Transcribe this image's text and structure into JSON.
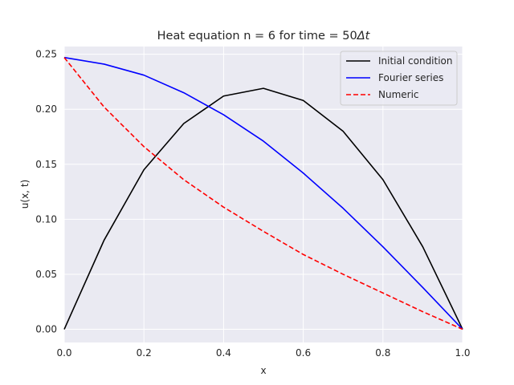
{
  "chart_data": {
    "type": "line",
    "title_main": "Heat equation n = 6 for time = 50",
    "title_symbol": "Δt",
    "xlabel": "x",
    "ylabel": "u(x, t)",
    "xlim": [
      0.0,
      1.0
    ],
    "ylim": [
      -0.012,
      0.257
    ],
    "xticks": [
      0.0,
      0.2,
      0.4,
      0.6,
      0.8,
      1.0
    ],
    "xtick_labels": [
      "0.0",
      "0.2",
      "0.4",
      "0.6",
      "0.8",
      "1.0"
    ],
    "yticks": [
      0.0,
      0.05,
      0.1,
      0.15,
      0.2,
      0.25
    ],
    "ytick_labels": [
      "0.00",
      "0.05",
      "0.10",
      "0.15",
      "0.20",
      "0.25"
    ],
    "grid": true,
    "legend_position": "top-right",
    "series": [
      {
        "name": "Initial condition",
        "color": "#000000",
        "style": "solid",
        "x": [
          0.0,
          0.1,
          0.2,
          0.3,
          0.4,
          0.5,
          0.6,
          0.7,
          0.8,
          0.9,
          1.0
        ],
        "y": [
          0.0,
          0.081,
          0.145,
          0.187,
          0.212,
          0.219,
          0.208,
          0.18,
          0.136,
          0.075,
          0.0
        ]
      },
      {
        "name": "Fourier series",
        "color": "#0000ff",
        "style": "solid",
        "x": [
          0.0,
          0.1,
          0.2,
          0.3,
          0.4,
          0.5,
          0.6,
          0.7,
          0.8,
          0.9,
          1.0
        ],
        "y": [
          0.247,
          0.241,
          0.231,
          0.215,
          0.195,
          0.171,
          0.142,
          0.11,
          0.075,
          0.038,
          0.0
        ]
      },
      {
        "name": "Numeric",
        "color": "#ff0000",
        "style": "dashed",
        "x": [
          0.0,
          0.1,
          0.2,
          0.3,
          0.4,
          0.5,
          0.6,
          0.7,
          0.8,
          0.9,
          1.0
        ],
        "y": [
          0.247,
          0.202,
          0.166,
          0.136,
          0.111,
          0.089,
          0.068,
          0.05,
          0.033,
          0.016,
          0.0
        ]
      }
    ]
  }
}
